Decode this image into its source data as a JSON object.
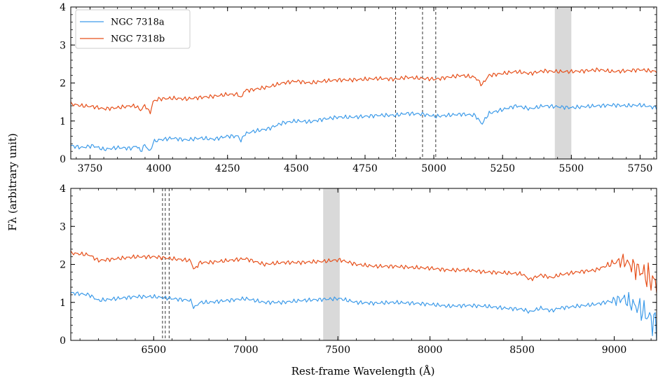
{
  "figure": {
    "ylabel": "Fλ (arbitrary unit)",
    "xlabel": "Rest-frame Wavelength (Å)"
  },
  "colors": {
    "ngc7318a": "#3d9be9",
    "ngc7318b": "#e6501b",
    "band": "#d9d9d9",
    "vline": "#333333"
  },
  "legend": {
    "placement": "top-left",
    "entries": [
      "NGC 7318a",
      "NGC 7318b"
    ]
  },
  "chart_data": [
    {
      "type": "line",
      "panel": "top",
      "xlim": [
        3680,
        5810
      ],
      "ylim": [
        0,
        4
      ],
      "xticks": [
        3750,
        4000,
        4250,
        4500,
        4750,
        5000,
        5250,
        5500,
        5750
      ],
      "xtick_labels": [
        "3750",
        "4000",
        "4250",
        "4500",
        "4750",
        "5000",
        "5250",
        "5500",
        "5750"
      ],
      "yticks": [
        0,
        1,
        2,
        3,
        4
      ],
      "ytick_labels": [
        "0",
        "1",
        "2",
        "3",
        "4"
      ],
      "vlines": [
        4861,
        4959,
        5007
      ],
      "shaded": [
        [
          5440,
          5500
        ]
      ],
      "series": [
        {
          "name": "NGC 7318a",
          "x": [
            3680,
            3720,
            3760,
            3800,
            3850,
            3900,
            3920,
            3934,
            3950,
            3968,
            3980,
            4000,
            4050,
            4100,
            4150,
            4200,
            4250,
            4290,
            4300,
            4310,
            4340,
            4400,
            4450,
            4500,
            4550,
            4600,
            4650,
            4700,
            4750,
            4800,
            4861,
            4900,
            4959,
            5007,
            5050,
            5100,
            5150,
            5175,
            5200,
            5250,
            5300,
            5350,
            5400,
            5440,
            5500,
            5550,
            5600,
            5650,
            5700,
            5750,
            5810
          ],
          "y": [
            0.35,
            0.3,
            0.35,
            0.25,
            0.3,
            0.28,
            0.35,
            0.2,
            0.38,
            0.18,
            0.45,
            0.5,
            0.55,
            0.5,
            0.55,
            0.52,
            0.6,
            0.6,
            0.45,
            0.65,
            0.72,
            0.8,
            0.95,
            1.0,
            0.98,
            1.05,
            1.1,
            1.1,
            1.12,
            1.15,
            1.15,
            1.2,
            1.18,
            1.12,
            1.15,
            1.18,
            1.15,
            0.92,
            1.2,
            1.3,
            1.4,
            1.32,
            1.4,
            1.38,
            1.35,
            1.38,
            1.4,
            1.42,
            1.4,
            1.42,
            1.35
          ]
        },
        {
          "name": "NGC 7318b",
          "x": [
            3680,
            3720,
            3760,
            3800,
            3850,
            3900,
            3920,
            3934,
            3950,
            3968,
            3980,
            4000,
            4050,
            4100,
            4150,
            4200,
            4250,
            4290,
            4300,
            4310,
            4340,
            4400,
            4450,
            4500,
            4550,
            4600,
            4650,
            4700,
            4750,
            4800,
            4861,
            4900,
            4959,
            5007,
            5050,
            5100,
            5150,
            5175,
            5200,
            5250,
            5300,
            5350,
            5400,
            5440,
            5500,
            5550,
            5600,
            5650,
            5700,
            5750,
            5810
          ],
          "y": [
            1.45,
            1.4,
            1.38,
            1.32,
            1.35,
            1.4,
            1.38,
            1.28,
            1.42,
            1.2,
            1.52,
            1.58,
            1.6,
            1.58,
            1.62,
            1.65,
            1.7,
            1.7,
            1.58,
            1.8,
            1.82,
            1.9,
            2.0,
            2.05,
            2.0,
            2.05,
            2.08,
            2.08,
            2.1,
            2.12,
            2.1,
            2.15,
            2.12,
            2.1,
            2.15,
            2.2,
            2.15,
            1.95,
            2.2,
            2.25,
            2.3,
            2.25,
            2.32,
            2.3,
            2.3,
            2.32,
            2.35,
            2.3,
            2.32,
            2.35,
            2.3
          ]
        }
      ]
    },
    {
      "type": "line",
      "panel": "bottom",
      "xlim": [
        6050,
        9230
      ],
      "ylim": [
        0,
        4
      ],
      "xticks": [
        6500,
        7000,
        7500,
        8000,
        8500,
        9000
      ],
      "xtick_labels": [
        "6500",
        "7000",
        "7500",
        "8000",
        "8500",
        "9000"
      ],
      "yticks": [
        0,
        1,
        2,
        3,
        4
      ],
      "ytick_labels": [
        "0",
        "1",
        "2",
        "3",
        "4"
      ],
      "vlines": [
        6548,
        6563,
        6584
      ],
      "shaded": [
        [
          7420,
          7510
        ]
      ],
      "series": [
        {
          "name": "NGC 7318a",
          "x": [
            6050,
            6150,
            6200,
            6300,
            6400,
            6500,
            6600,
            6700,
            6720,
            6750,
            6800,
            6900,
            7000,
            7100,
            7200,
            7300,
            7420,
            7510,
            7600,
            7700,
            7800,
            7900,
            8000,
            8100,
            8200,
            8300,
            8400,
            8500,
            8542,
            8600,
            8662,
            8700,
            8800,
            8900,
            9000,
            9050,
            9100,
            9150,
            9200,
            9230
          ],
          "y": [
            1.25,
            1.2,
            1.05,
            1.1,
            1.15,
            1.15,
            1.1,
            1.05,
            0.85,
            1.0,
            1.0,
            1.05,
            1.1,
            1.0,
            1.0,
            1.05,
            1.08,
            1.1,
            1.0,
            0.98,
            1.0,
            0.98,
            0.95,
            0.9,
            0.92,
            0.9,
            0.85,
            0.82,
            0.75,
            0.85,
            0.78,
            0.85,
            0.9,
            0.95,
            1.05,
            1.1,
            0.95,
            0.8,
            0.55,
            0.4
          ]
        },
        {
          "name": "NGC 7318b",
          "x": [
            6050,
            6150,
            6200,
            6300,
            6400,
            6500,
            6600,
            6700,
            6720,
            6750,
            6800,
            6900,
            7000,
            7100,
            7200,
            7300,
            7420,
            7510,
            7600,
            7700,
            7800,
            7900,
            8000,
            8100,
            8200,
            8300,
            8400,
            8500,
            8542,
            8600,
            8662,
            8700,
            8800,
            8900,
            9000,
            9050,
            9100,
            9150,
            9200,
            9230
          ],
          "y": [
            2.3,
            2.25,
            2.1,
            2.15,
            2.2,
            2.2,
            2.15,
            2.1,
            1.85,
            2.05,
            2.05,
            2.1,
            2.15,
            2.0,
            2.05,
            2.05,
            2.08,
            2.12,
            2.0,
            1.95,
            1.95,
            1.92,
            1.9,
            1.85,
            1.85,
            1.8,
            1.78,
            1.75,
            1.6,
            1.72,
            1.65,
            1.72,
            1.8,
            1.85,
            2.05,
            2.1,
            1.95,
            1.8,
            1.6,
            1.5
          ]
        }
      ]
    }
  ]
}
